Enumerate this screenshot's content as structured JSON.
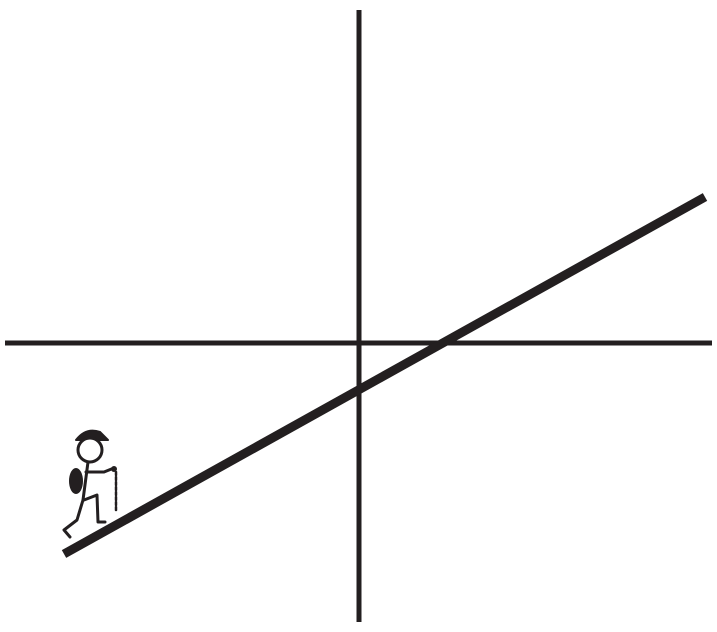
{
  "diagram": {
    "description_free": true,
    "ink_color": "#231f20",
    "background_color": "#ffffff",
    "elements": {
      "x_axis": "horizontal-axis",
      "y_axis": "vertical-axis",
      "line": "sloped-line",
      "figure": "hiker-figure-icon"
    }
  }
}
